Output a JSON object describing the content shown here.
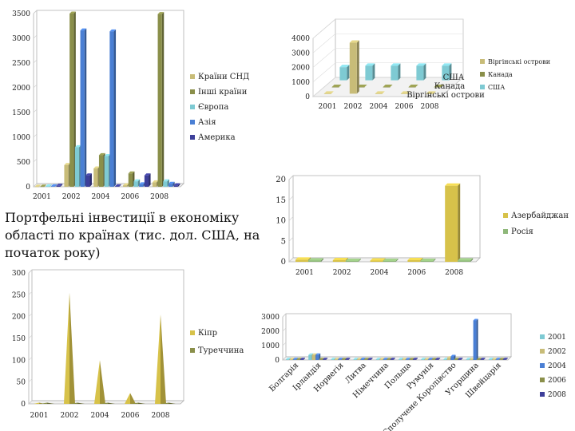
{
  "slide": {
    "title": "Портфельні інвестиції в економіку області по країнах (тис. дол. США, на початок року)"
  },
  "colors": {
    "olive": "#c8bc78",
    "olive_dark": "#8a8f4a",
    "cyan": "#7ecad3",
    "blue": "#4a7fd4",
    "navy": "#3d3f9a",
    "gold": "#d7c24a",
    "green": "#8fb87a"
  },
  "chart_data": [
    {
      "type": "bar",
      "categories": [
        "2001",
        "2002",
        "2004",
        "2006",
        "2008"
      ],
      "series": [
        {
          "name": "Країни СНД",
          "color": "#c8bc78",
          "values": [
            3,
            440,
            370,
            30,
            90
          ]
        },
        {
          "name": "Інші країни",
          "color": "#8a8f4a",
          "values": [
            5,
            3500,
            640,
            270,
            3490
          ]
        },
        {
          "name": "Європа",
          "color": "#7ecad3",
          "values": [
            8,
            800,
            620,
            110,
            110
          ]
        },
        {
          "name": "Азія",
          "color": "#4a7fd4",
          "values": [
            10,
            3160,
            3140,
            50,
            60
          ]
        },
        {
          "name": "Америка",
          "color": "#3d3f9a",
          "values": [
            20,
            230,
            10,
            230,
            30
          ]
        }
      ],
      "ylim": [
        0,
        3500
      ],
      "yticks": [
        "0",
        "500",
        "1000",
        "1500",
        "2000",
        "2500",
        "3000",
        "3500"
      ],
      "legend": "right"
    },
    {
      "type": "bar",
      "categories": [
        "2001",
        "2002",
        "2004",
        "2006",
        "2008"
      ],
      "series": [
        {
          "name": "Віргінські острови",
          "color": "#c8bc78",
          "values": [
            0,
            3500,
            0,
            0,
            0
          ]
        },
        {
          "name": "Канада",
          "color": "#8a8f4a",
          "values": [
            0,
            0,
            0,
            0,
            0
          ]
        },
        {
          "name": "США",
          "color": "#7ecad3",
          "values": [
            900,
            1000,
            1000,
            1000,
            1000
          ]
        }
      ],
      "depth_labels": [
        "США",
        "Канада",
        "Віргінські острови"
      ],
      "ylim": [
        0,
        4000
      ],
      "yticks": [
        "0",
        "1000",
        "2000",
        "3000",
        "4000"
      ],
      "legend": "right"
    },
    {
      "type": "bar",
      "categories": [
        "2001",
        "2002",
        "2004",
        "2006",
        "2008"
      ],
      "series": [
        {
          "name": "Азербайджан",
          "color": "#d7c24a",
          "values": [
            0.5,
            0.4,
            0.3,
            0.4,
            18.5
          ]
        },
        {
          "name": "Росія",
          "color": "#8fb87a",
          "values": [
            0.3,
            0.2,
            0.2,
            0.2,
            0.3
          ]
        }
      ],
      "ylim": [
        0,
        20
      ],
      "yticks": [
        "0",
        "5",
        "10",
        "15",
        "20"
      ],
      "legend": "right"
    },
    {
      "type": "bar",
      "categories": [
        "2001",
        "2002",
        "2004",
        "2006",
        "2008"
      ],
      "series": [
        {
          "name": "Кіпр",
          "color": "#d7c24a",
          "values": [
            2,
            255,
            100,
            25,
            205
          ]
        },
        {
          "name": "Туреччина",
          "color": "#8a8f4a",
          "values": [
            2,
            2,
            2,
            2,
            2
          ]
        }
      ],
      "ylim": [
        0,
        300
      ],
      "yticks": [
        "0",
        "50",
        "100",
        "150",
        "200",
        "250",
        "300"
      ],
      "legend": "right"
    },
    {
      "type": "bar",
      "categories": [
        "Болгарія",
        "Ірландія",
        "Норвегія",
        "Литва",
        "Німеччина",
        "Польща",
        "Румунія",
        "Сполучене Королівство",
        "Угорщина",
        "Швейцарія"
      ],
      "series": [
        {
          "name": "2001",
          "color": "#7ecad3",
          "values": [
            0,
            350,
            0,
            0,
            0,
            0,
            0,
            0,
            0,
            0
          ]
        },
        {
          "name": "2002",
          "color": "#c8bc78",
          "values": [
            0,
            350,
            0,
            50,
            0,
            0,
            0,
            150,
            0,
            0
          ]
        },
        {
          "name": "2004",
          "color": "#4a7fd4",
          "values": [
            0,
            350,
            0,
            50,
            0,
            0,
            0,
            250,
            2750,
            0
          ]
        },
        {
          "name": "2006",
          "color": "#8a8f4a",
          "values": [
            0,
            0,
            0,
            0,
            0,
            0,
            0,
            0,
            0,
            0
          ]
        },
        {
          "name": "2008",
          "color": "#3d3f9a",
          "values": [
            0,
            0,
            0,
            0,
            0,
            0,
            0,
            0,
            0,
            0
          ]
        }
      ],
      "ylim": [
        0,
        3000
      ],
      "yticks": [
        "0",
        "1000",
        "2000",
        "3000"
      ],
      "legend": "right"
    }
  ]
}
